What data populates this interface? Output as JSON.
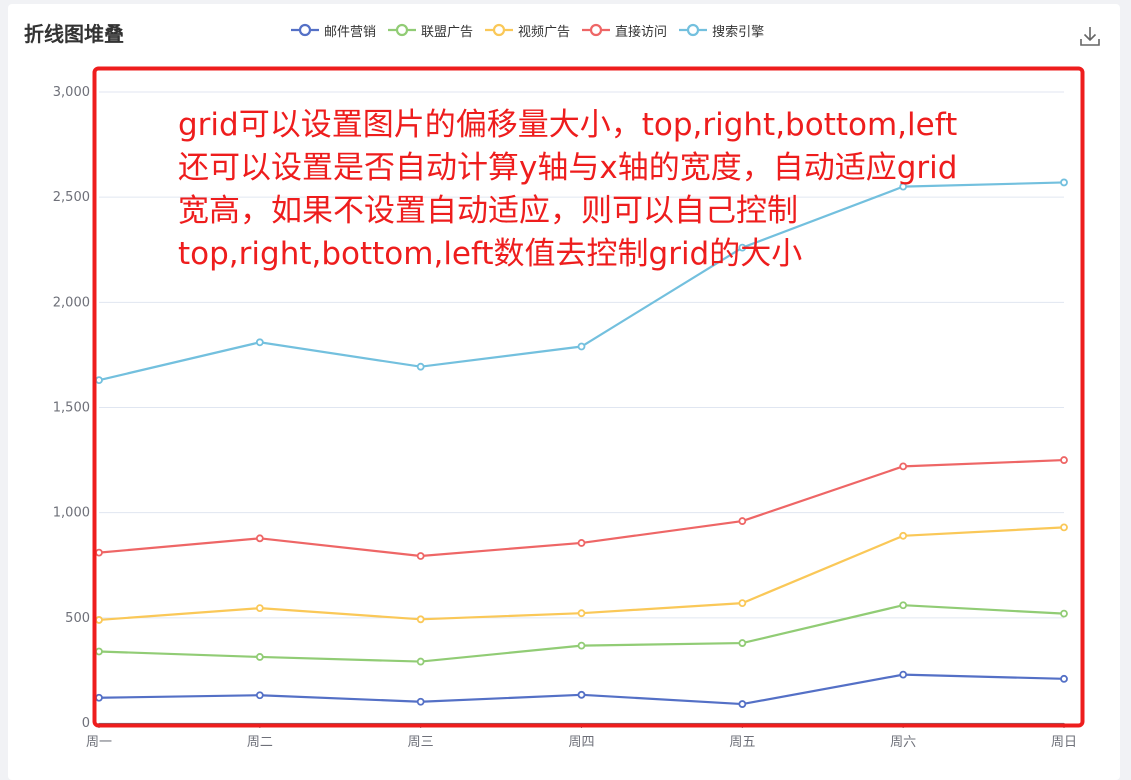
{
  "chart_data": {
    "type": "line",
    "title": "折线图堆叠",
    "categories": [
      "周一",
      "周二",
      "周三",
      "周四",
      "周五",
      "周六",
      "周日"
    ],
    "stacked": true,
    "ylim": [
      0,
      3000
    ],
    "yticks": [
      0,
      500,
      1000,
      1500,
      2000,
      2500,
      3000
    ],
    "ytick_labels": [
      "0",
      "500",
      "1,000",
      "1,500",
      "2,000",
      "2,500",
      "3,000"
    ],
    "grid": true,
    "legend_position": "top-center",
    "series": [
      {
        "name": "邮件营销",
        "color": "#5470c6",
        "values": [
          120,
          132,
          101,
          134,
          90,
          230,
          210
        ]
      },
      {
        "name": "联盟广告",
        "color": "#91cc75",
        "values": [
          340,
          314,
          292,
          368,
          380,
          560,
          520
        ]
      },
      {
        "name": "视频广告",
        "color": "#fac858",
        "values": [
          490,
          546,
          493,
          522,
          570,
          890,
          930
        ]
      },
      {
        "name": "直接访问",
        "color": "#ee6666",
        "values": [
          810,
          878,
          794,
          856,
          960,
          1220,
          1250
        ]
      },
      {
        "name": "搜索引擎",
        "color": "#73c0de",
        "values": [
          1630,
          1810,
          1694,
          1790,
          2260,
          2550,
          2570
        ]
      }
    ],
    "annotation": "grid可以设置图片的偏移量大小，top,right,bottom,left\n还可以设置是否自动计算y轴与x轴的宽度，自动适应grid\n宽高，如果不设置自动适应，则可以自己控制\ntop,right,bottom,left数值去控制grid的大小",
    "annotation_color": "#ee1d1d",
    "highlight_box_color": "#ee1d1d"
  },
  "toolbox": {
    "icon": "download-icon"
  }
}
